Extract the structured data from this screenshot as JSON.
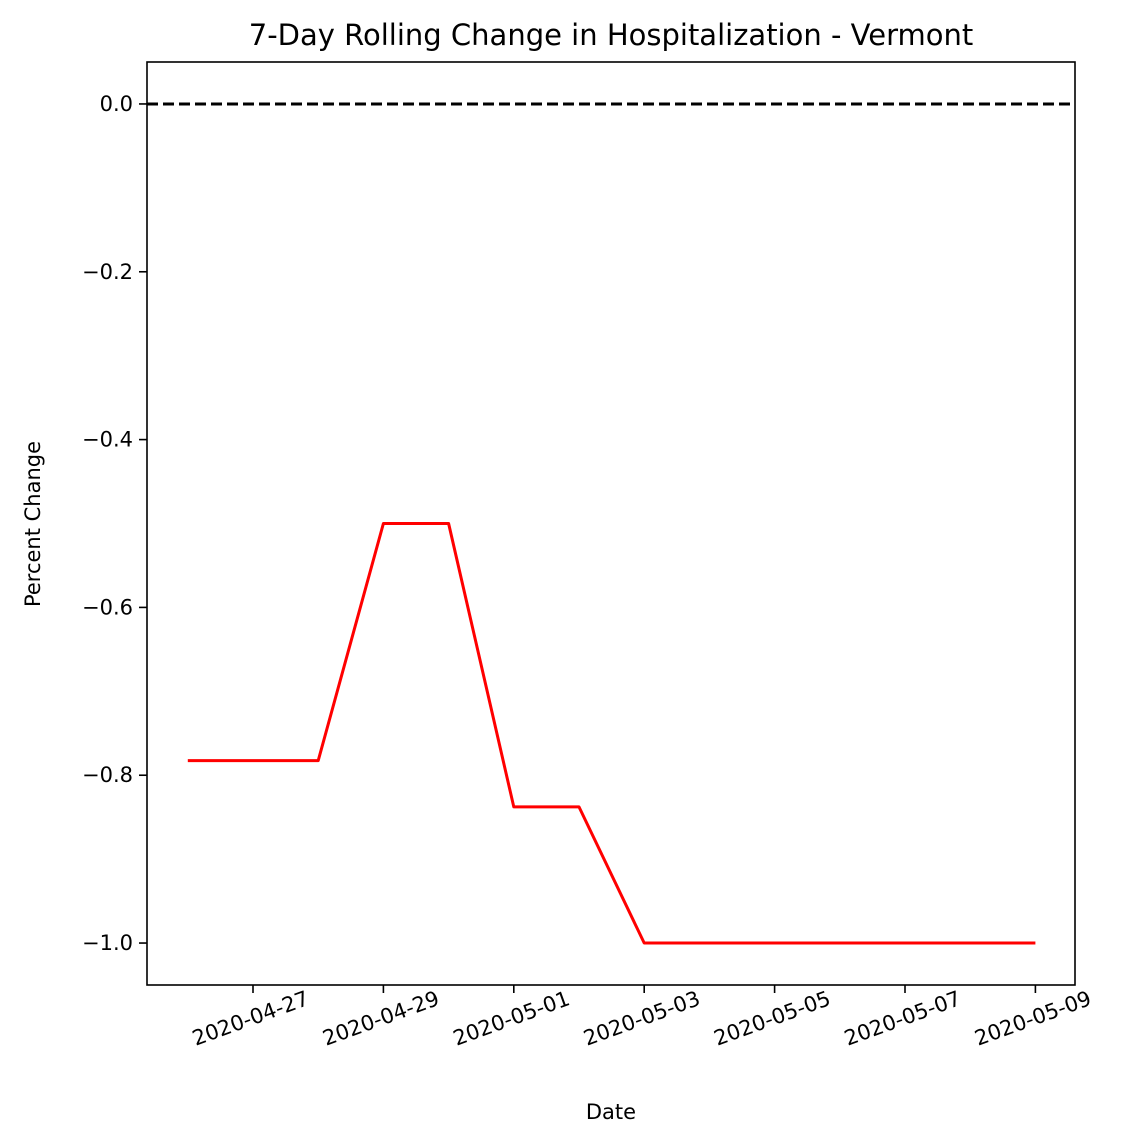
{
  "chart_data": {
    "type": "line",
    "title": "7-Day Rolling Change in Hospitalization - Vermont",
    "xlabel": "Date",
    "ylabel": "Percent Change",
    "x_ticks": [
      "2020-04-27",
      "2020-04-29",
      "2020-05-01",
      "2020-05-03",
      "2020-05-05",
      "2020-05-07",
      "2020-05-09"
    ],
    "y_ticks": [
      "0.0",
      "−0.2",
      "−0.4",
      "−0.6",
      "−0.8",
      "−1.0"
    ],
    "y_tick_values": [
      0.0,
      -0.2,
      -0.4,
      -0.6,
      -0.8,
      -1.0
    ],
    "xlim": [
      "2020-04-24",
      "2020-05-09"
    ],
    "ylim": [
      -1.05,
      0.05
    ],
    "grid": false,
    "series": [
      {
        "color": "#ff0000",
        "x": [
          "2020-04-26",
          "2020-04-27",
          "2020-04-28",
          "2020-04-29",
          "2020-04-30",
          "2020-05-01",
          "2020-05-02",
          "2020-05-03",
          "2020-05-04",
          "2020-05-05",
          "2020-05-06",
          "2020-05-07",
          "2020-05-08",
          "2020-05-09"
        ],
        "values": [
          -0.7826,
          -0.7826,
          -0.7826,
          -0.5,
          -0.5,
          -0.8378,
          -0.8378,
          -1.0,
          -1.0,
          -1.0,
          -1.0,
          -1.0,
          -1.0,
          -1.0
        ]
      }
    ],
    "reference_line": {
      "y": 0.0,
      "style": "dashed",
      "color": "#000000"
    }
  }
}
